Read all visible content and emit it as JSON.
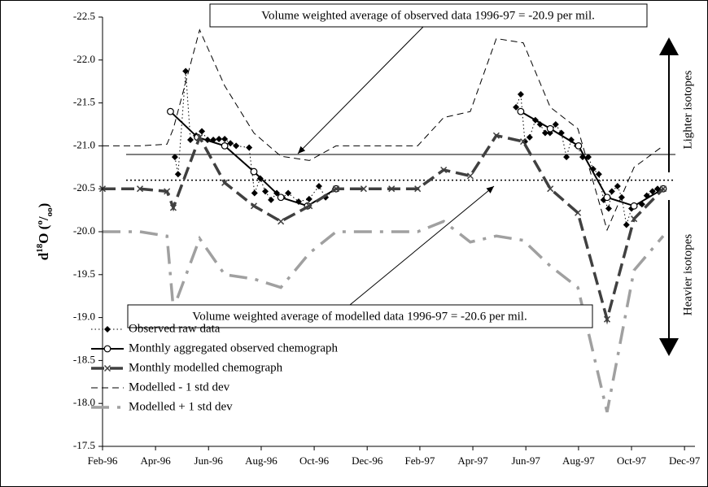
{
  "chart_data": {
    "type": "line",
    "y_label": [
      "d",
      "18",
      "O (",
      "o",
      "/",
      "oo",
      ")"
    ],
    "ylim": [
      -22.5,
      -17.5
    ],
    "y_inverted": true,
    "yticks": [
      -22.5,
      {
        "value": -22.0,
        "label": "-22.0"
      },
      -21.5,
      {
        "value": -21.0,
        "label": "-21.0"
      },
      -20.5,
      {
        "value": -20.0,
        "label": "-20.0"
      },
      -19.5,
      {
        "value": -19.0,
        "label": "-19.0"
      },
      -18.5,
      {
        "value": -18.0,
        "label": "-18.0"
      },
      -17.5
    ],
    "xlim": [
      1996.083,
      1997.95
    ],
    "xticks": [
      {
        "value": 1996.083,
        "label": "Feb-96"
      },
      {
        "value": 1996.25,
        "label": "Apr-96"
      },
      {
        "value": 1996.417,
        "label": "Jun-96"
      },
      {
        "value": 1996.583,
        "label": "Aug-96"
      },
      {
        "value": 1996.75,
        "label": "Oct-96"
      },
      {
        "value": 1996.917,
        "label": "Dec-96"
      },
      {
        "value": 1997.083,
        "label": "Feb-97"
      },
      {
        "value": 1997.25,
        "label": "Apr-97"
      },
      {
        "value": 1997.417,
        "label": "Jun-97"
      },
      {
        "value": 1997.583,
        "label": "Aug-97"
      },
      {
        "value": 1997.75,
        "label": "Oct-97"
      },
      {
        "value": 1997.917,
        "label": "Dec-97"
      }
    ],
    "grid": false,
    "hlines": [
      {
        "value": -20.9,
        "style": "solid"
      },
      {
        "value": -20.6,
        "style": "dotted"
      }
    ],
    "annotations": [
      "Volume weighted average of observed data 1996-97 = -20.9 per mil.",
      "Volume weighted average of modelled data 1996-97 = -20.6 per mil."
    ],
    "side_labels": [
      "Lighter isotopes",
      "Heavier isotopes"
    ],
    "series": [
      {
        "name": "Observed raw data",
        "color": "#000000",
        "line_style": "dotted",
        "marker": "diamond",
        "x": [
          1996.311,
          1996.321,
          1996.345,
          1996.36,
          1996.378,
          1996.396,
          1996.414,
          1996.432,
          1996.45,
          1996.468,
          1996.486,
          1996.504,
          1996.545,
          1996.562,
          1996.58,
          1996.596,
          1996.614,
          1996.632,
          1996.65,
          1996.668,
          1996.701,
          1996.734,
          1996.765,
          1996.786,
          1996.816,
          1997.0,
          1997.386,
          1997.401,
          1997.414,
          1997.429,
          1997.447,
          1997.462,
          1997.478,
          1997.493,
          1997.511,
          1997.529,
          1997.545,
          1997.56,
          1997.578,
          1997.596,
          1997.614,
          1997.629,
          1997.647,
          1997.662,
          1997.678,
          1997.688,
          1997.706,
          1997.719,
          1997.734,
          1997.75,
          1997.783,
          1997.798,
          1997.816,
          1997.832
        ],
        "values": [
          -20.87,
          -20.67,
          -21.87,
          -21.07,
          -21.12,
          -21.17,
          -21.07,
          -21.07,
          -21.08,
          -21.08,
          -21.03,
          -21.0,
          -20.98,
          -20.45,
          -20.62,
          -20.47,
          -20.37,
          -20.45,
          -20.4,
          -20.45,
          -20.35,
          -20.38,
          -20.53,
          -20.4,
          -20.5,
          null,
          -21.45,
          -21.6,
          -21.05,
          -21.1,
          -21.3,
          -21.25,
          -21.15,
          -21.15,
          -21.25,
          -21.15,
          -20.87,
          -21.07,
          -21.0,
          -20.87,
          -20.87,
          -20.73,
          -20.67,
          -20.37,
          -20.27,
          -20.47,
          -20.53,
          -20.4,
          -20.08,
          -20.27,
          -20.32,
          -20.42,
          -20.47,
          -20.5
        ]
      },
      {
        "name": "Monthly aggregated observed chemograph",
        "color": "#000000",
        "line_style": "solid",
        "marker": "circle",
        "x": [
          1996.297,
          1996.382,
          1996.468,
          1996.56,
          1996.645,
          1996.729,
          1996.819,
          1997.0,
          1997.401,
          1997.494,
          1997.583,
          1997.673,
          1997.758,
          1997.85
        ],
        "values": [
          -21.4,
          -21.1,
          -21.0,
          -20.7,
          -20.4,
          -20.3,
          -20.5,
          null,
          -21.4,
          -21.2,
          -21.0,
          -20.4,
          -20.3,
          -20.5
        ]
      },
      {
        "name": "Monthly modelled chemograph",
        "color": "#404040",
        "line_style": "dashed-thick",
        "marker": "cross",
        "x": [
          1996.083,
          1996.201,
          1996.286,
          1996.306,
          1996.389,
          1996.468,
          1996.56,
          1996.645,
          1996.735,
          1996.819,
          1996.906,
          1996.994,
          1997.076,
          1997.158,
          1997.242,
          1997.324,
          1997.409,
          1997.494,
          1997.581,
          1997.673,
          1997.758,
          1997.85
        ],
        "values": [
          -20.5,
          -20.5,
          -20.47,
          -20.28,
          -21.1,
          -20.57,
          -20.3,
          -20.12,
          -20.3,
          -20.5,
          -20.5,
          -20.5,
          -20.5,
          -20.72,
          -20.65,
          -21.12,
          -21.05,
          -20.5,
          -20.22,
          -18.98,
          -20.15,
          -20.5
        ]
      },
      {
        "name": "Modelled - 1 std dev",
        "color": "#000000",
        "line_style": "dashed",
        "marker": "none",
        "x": [
          1996.083,
          1996.201,
          1996.286,
          1996.306,
          1996.389,
          1996.468,
          1996.56,
          1996.645,
          1996.735,
          1996.819,
          1996.906,
          1996.994,
          1997.076,
          1997.158,
          1997.242,
          1997.324,
          1997.409,
          1997.494,
          1997.581,
          1997.673,
          1997.758,
          1997.85
        ],
        "values": [
          -21.0,
          -21.0,
          -21.02,
          -21.2,
          -22.35,
          -21.7,
          -21.15,
          -20.88,
          -20.83,
          -21.0,
          -21.0,
          -21.0,
          -21.0,
          -21.33,
          -21.4,
          -22.25,
          -22.2,
          -21.45,
          -21.2,
          -20.02,
          -20.75,
          -21.0
        ]
      },
      {
        "name": "Modelled + 1 std dev",
        "color": "#a0a0a0",
        "line_style": "dashdot-thick",
        "marker": "none",
        "x": [
          1996.083,
          1996.201,
          1996.286,
          1996.306,
          1996.389,
          1996.468,
          1996.56,
          1996.645,
          1996.735,
          1996.819,
          1996.906,
          1996.994,
          1997.076,
          1997.158,
          1997.242,
          1997.324,
          1997.409,
          1997.494,
          1997.581,
          1997.673,
          1997.758,
          1997.85
        ],
        "values": [
          -20.0,
          -20.0,
          -19.95,
          -19.1,
          -19.92,
          -19.5,
          -19.45,
          -19.35,
          -19.75,
          -20.0,
          -20.0,
          -20.0,
          -20.0,
          -20.12,
          -19.88,
          -19.95,
          -19.9,
          -19.6,
          -19.35,
          -17.9,
          -19.55,
          -19.95
        ]
      }
    ]
  }
}
